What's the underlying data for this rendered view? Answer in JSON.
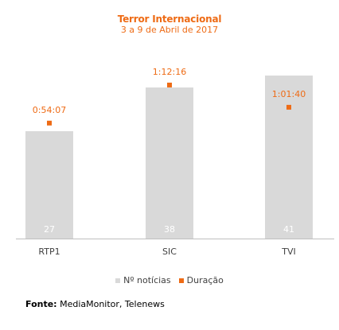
{
  "title": "Terror Internacional",
  "subtitle": "3 a 9 de Abril de 2017",
  "colors": {
    "bars": "#d9d9d9",
    "points": "#ee6b15",
    "bar_labels": "#ffffff",
    "point_labels": "#ee6b15",
    "axis": "#bfbfbf",
    "category_text": "#404040"
  },
  "chart_data": {
    "type": "bar",
    "categories": [
      "RTP1",
      "SIC",
      "TVI"
    ],
    "series": [
      {
        "name": "Nº notícias",
        "type": "bar",
        "values": [
          27,
          38,
          41
        ],
        "labels": [
          "27",
          "38",
          "41"
        ]
      },
      {
        "name": "Duração",
        "type": "scatter",
        "values": [
          "0:54:07",
          "1:12:16",
          "1:01:40"
        ],
        "labels": [
          "0:54:07",
          "1:12:16",
          "1:01:40"
        ]
      }
    ],
    "legend_position": "bottom",
    "grid": false
  },
  "source": {
    "label": "Fonte:",
    "text": "MediaMonitor, Telenews"
  }
}
